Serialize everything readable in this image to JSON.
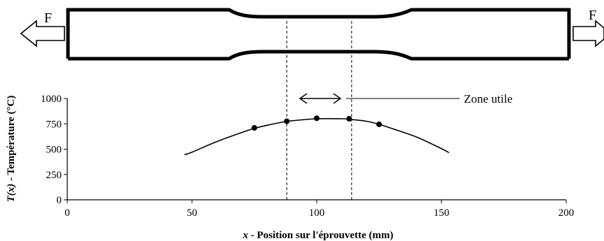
{
  "specimen": {
    "force_left": "F",
    "force_right": "F"
  },
  "annotation": {
    "zone_label": "Zone utile"
  },
  "chart_data": {
    "type": "line",
    "title": "",
    "xlabel_var": "x",
    "xlabel": " - Position sur l'éprouvette (mm)",
    "ylabel_var": "T(x)",
    "ylabel": " - Température (°C)",
    "xlim": [
      0,
      200
    ],
    "ylim": [
      0,
      1000
    ],
    "x_ticks": [
      0,
      50,
      100,
      150,
      200
    ],
    "x_tick_labels": [
      "0",
      "50",
      "100",
      "150",
      "200"
    ],
    "y_ticks": [
      0,
      250,
      500,
      750,
      1000
    ],
    "y_tick_labels": [
      "0",
      "250",
      "500",
      "750",
      "1000"
    ],
    "grid": false,
    "series": [
      {
        "kind": "curve",
        "x": [
          47,
          50,
          60,
          70,
          75,
          80,
          88,
          90,
          100,
          110,
          113,
          120,
          125,
          130,
          140,
          150,
          153
        ],
        "y": [
          445,
          470,
          575,
          665,
          705,
          735,
          775,
          780,
          800,
          800,
          795,
          775,
          745,
          705,
          620,
          505,
          465
        ]
      },
      {
        "kind": "measured",
        "x": [
          75,
          88,
          100,
          113,
          125
        ],
        "y": [
          710,
          775,
          805,
          800,
          745
        ]
      }
    ],
    "useful_zone": [
      88,
      114
    ]
  }
}
